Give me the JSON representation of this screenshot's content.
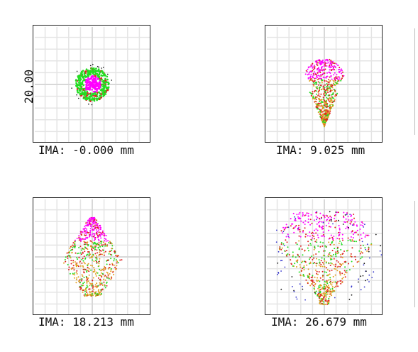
{
  "chart_data": {
    "type": "scatter",
    "title": "",
    "scale_label": "20.00",
    "colors": [
      "#ff00ff",
      "#22dd22",
      "#dd2222",
      "#e0a020",
      "#3333cc",
      "#111111"
    ],
    "grid": true,
    "panels": [
      {
        "label": "IMA: -0.000 mm",
        "field_mm": 0.0,
        "spot": {
          "shape": "disc",
          "cx": 0,
          "cy": 0,
          "r_outer": 12,
          "r_inner": 6
        }
      },
      {
        "label": "IMA: 9.025 mm",
        "field_mm": 9.025,
        "spot": {
          "shape": "tulip",
          "top": 18,
          "bottom": -30,
          "half_width": 14
        }
      },
      {
        "label": "IMA: 18.213 mm",
        "field_mm": 18.213,
        "spot": {
          "shape": "diamond",
          "top": 28,
          "bottom": -28,
          "half_width": 20
        }
      },
      {
        "label": "IMA: 26.679 mm",
        "field_mm": 26.679,
        "spot": {
          "shape": "mask",
          "top": 32,
          "bottom": -34,
          "half_width": 34
        }
      }
    ]
  }
}
